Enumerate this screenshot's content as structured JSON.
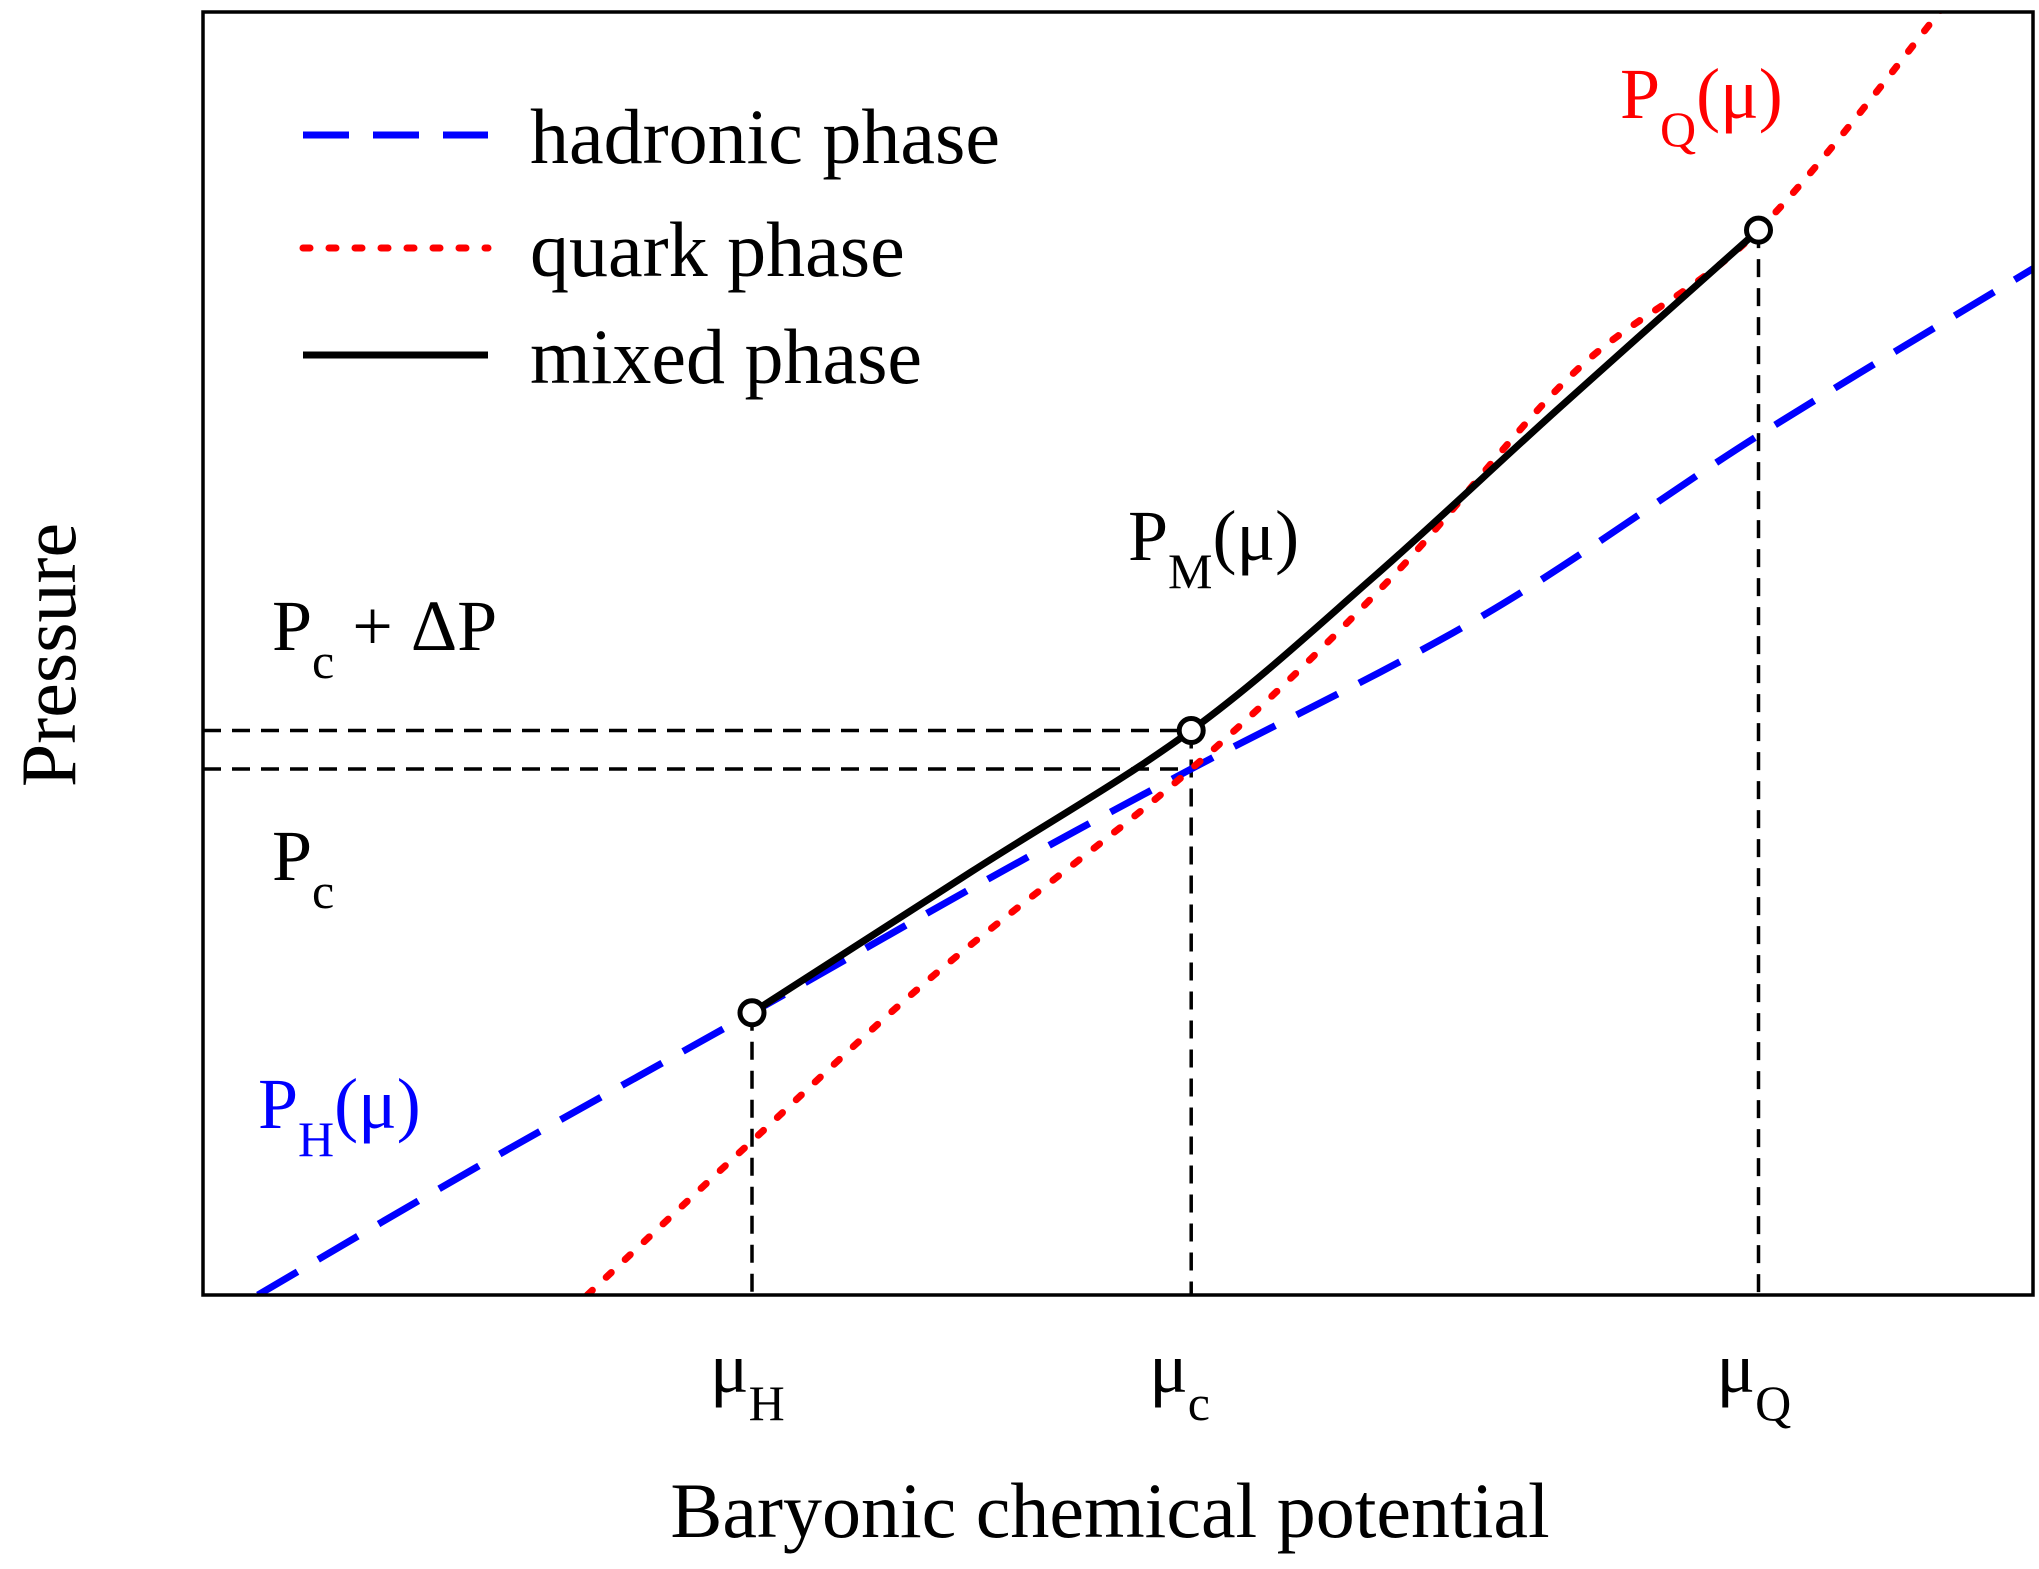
{
  "chart_data": {
    "type": "line",
    "title": "",
    "xlabel": "Baryonic chemical potential",
    "ylabel": "Pressure",
    "xlim": [
      0,
      10
    ],
    "ylim": [
      0,
      10
    ],
    "x_ticks": [
      {
        "main": "μ",
        "sub": "H",
        "x": 3.0
      },
      {
        "main": "μ",
        "sub": "c",
        "x": 5.4
      },
      {
        "main": "μ",
        "sub": "Q",
        "x": 8.5
      }
    ],
    "legend": {
      "position": "top-left"
    },
    "series": [
      {
        "name": "hadronic phase",
        "style": "dashed",
        "color": "#0000ff",
        "x": [
          0.3,
          1.5,
          3.0,
          4.3,
          5.4,
          7.0,
          8.5,
          10.0
        ],
        "y": [
          0.0,
          1.0,
          2.2,
          3.25,
          4.1,
          5.3,
          6.7,
          8.0
        ]
      },
      {
        "name": "quark phase",
        "style": "dotted",
        "color": "#ff0000",
        "x": [
          2.1,
          3.0,
          4.0,
          5.4,
          6.5,
          7.5,
          8.5,
          9.6
        ],
        "y": [
          0.0,
          1.2,
          2.5,
          4.1,
          5.6,
          7.2,
          8.3,
          10.2
        ]
      },
      {
        "name": "mixed phase",
        "style": "solid",
        "color": "#000000",
        "x": [
          3.0,
          4.2,
          5.4,
          6.4,
          7.4,
          8.5
        ],
        "y": [
          2.2,
          3.3,
          4.4,
          5.6,
          6.9,
          8.3
        ]
      }
    ],
    "reference_lines": [
      {
        "label_main": "P",
        "label_sub": "c",
        "label_suffix": "",
        "y": 4.1
      },
      {
        "label_main": "P",
        "label_sub": "c",
        "label_suffix": " + ΔP",
        "y": 4.4
      }
    ],
    "curve_labels": [
      {
        "main": "P",
        "sub": "H",
        "suffix": "(μ)",
        "color": "#0000ff"
      },
      {
        "main": "P",
        "sub": "M",
        "suffix": "(μ)",
        "color": "#000000"
      },
      {
        "main": "P",
        "sub": "Q",
        "suffix": "(μ)",
        "color": "#ff0000"
      }
    ],
    "markers": [
      "open-circle",
      "open-circle",
      "open-circle"
    ]
  }
}
